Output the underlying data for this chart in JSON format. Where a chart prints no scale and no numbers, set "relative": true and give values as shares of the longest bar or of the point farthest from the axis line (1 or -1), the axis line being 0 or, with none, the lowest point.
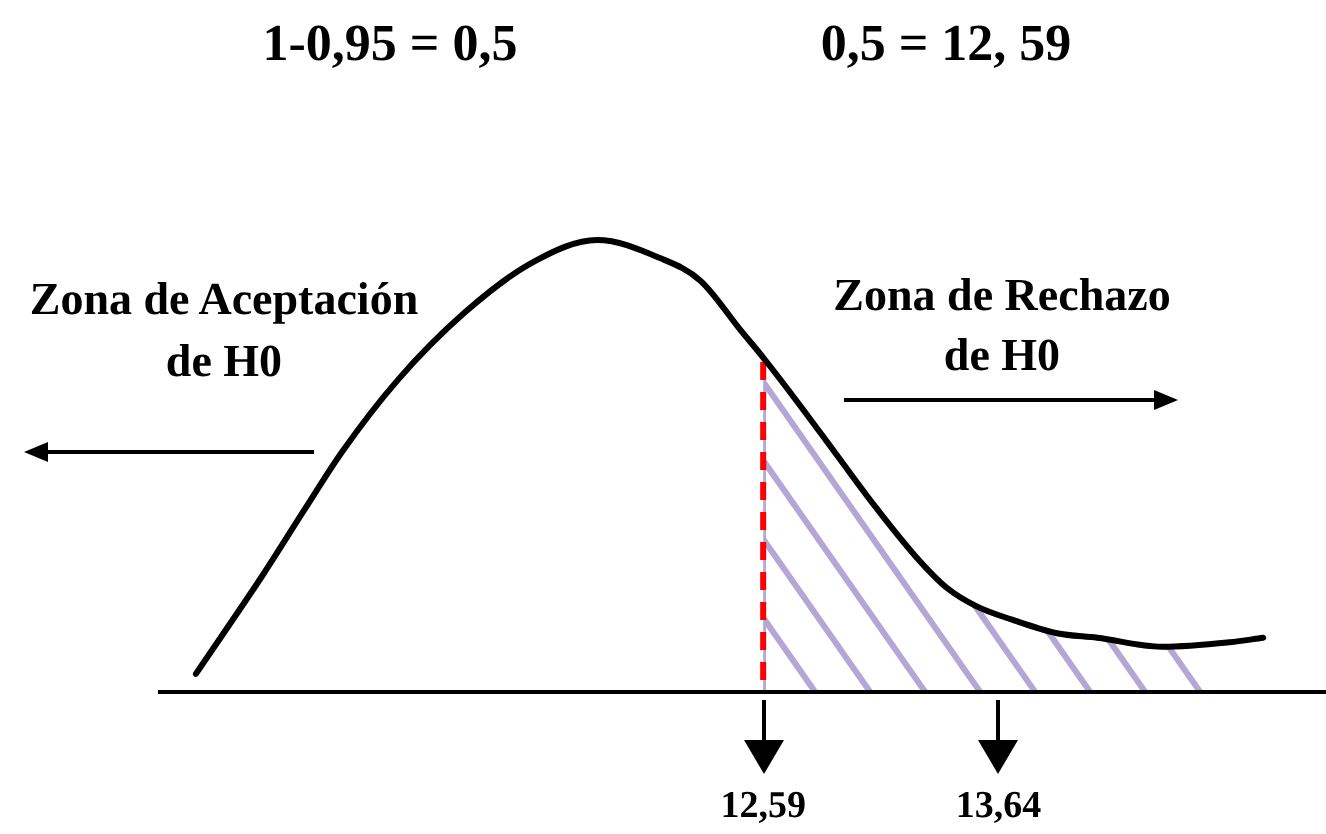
{
  "chart_data": {
    "type": "line",
    "relative": true,
    "x": [
      10.06,
      10.36,
      10.54,
      10.71,
      10.96,
      11.26,
      11.56,
      11.85,
      12.13,
      12.31,
      12.49,
      12.59,
      12.73,
      12.91,
      13.09,
      13.27,
      13.41,
      13.54,
      13.7,
      13.9,
      14.08,
      14.37,
      14.67,
      14.82
    ],
    "series": [
      {
        "color": "#000000",
        "values": [
          0.04,
          0.26,
          0.4,
          0.53,
          0.69,
          0.84,
          0.95,
          1,
          0.96,
          0.91,
          0.8,
          0.74,
          0.65,
          0.53,
          0.41,
          0.3,
          0.23,
          0.19,
          0.16,
          0.13,
          0.12,
          0.1,
          0.11,
          0.12
        ]
      },
      {
        "type": "area",
        "color": "#b4a7d6",
        "x": [
          12.59,
          12.73,
          12.91,
          13.09,
          13.27,
          13.41,
          13.54,
          13.7,
          13.9,
          14.08,
          14.37,
          14.6
        ],
        "values": [
          0.74,
          0.65,
          0.53,
          0.41,
          0.3,
          0.23,
          0.19,
          0.16,
          0.13,
          0.12,
          0.1,
          0.11
        ]
      }
    ],
    "xlim": [
      9.9,
      15.1
    ],
    "xticks": [
      {
        "value": 12.59,
        "label": "12,59"
      },
      {
        "value": 13.64,
        "label": "13,64"
      }
    ],
    "ref_lines": [
      {
        "axis": "x",
        "value": 12.59,
        "color": "#ff0000",
        "line_style": "dashed"
      }
    ],
    "marker": "none",
    "annotations": [
      "1-0,95 = 0,5",
      "0,5 = 12, 59",
      "Zona de Aceptación de H0",
      "Zona de Rechazo de H0"
    ]
  }
}
